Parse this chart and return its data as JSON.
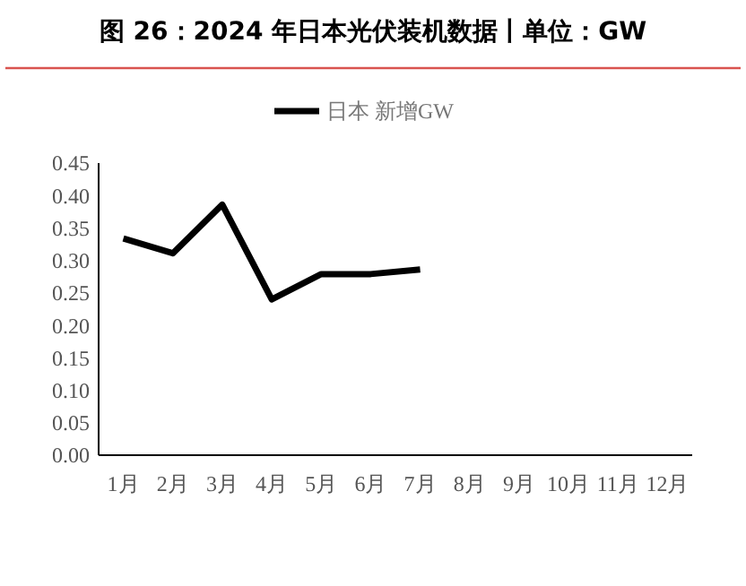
{
  "chart_data": {
    "type": "line",
    "title": "图 26：2024 年日本光伏装机数据丨单位：GW",
    "categories": [
      "1月",
      "2月",
      "3月",
      "4月",
      "5月",
      "6月",
      "7月",
      "8月",
      "9月",
      "10月",
      "11月",
      "12月"
    ],
    "series": [
      {
        "name": "日本 新增GW",
        "color": "#000000",
        "values": [
          0.334,
          0.311,
          0.386,
          0.24,
          0.279,
          0.279,
          0.286,
          null,
          null,
          null,
          null,
          null
        ]
      }
    ],
    "ylim": [
      0,
      0.45
    ],
    "yticks": [
      {
        "value": 0,
        "label": "0.00"
      },
      {
        "value": 0.05,
        "label": "0.05"
      },
      {
        "value": 0.1,
        "label": "0.10"
      },
      {
        "value": 0.15,
        "label": "0.15"
      },
      {
        "value": 0.2,
        "label": "0.20"
      },
      {
        "value": 0.25,
        "label": "0.25"
      },
      {
        "value": 0.3,
        "label": "0.30"
      },
      {
        "value": 0.35,
        "label": "0.35"
      },
      {
        "value": 0.4,
        "label": "0.40"
      },
      {
        "value": 0.45,
        "label": "0.45"
      }
    ],
    "legend": "top",
    "marker": "none",
    "line_style": "solid",
    "grid": false
  }
}
